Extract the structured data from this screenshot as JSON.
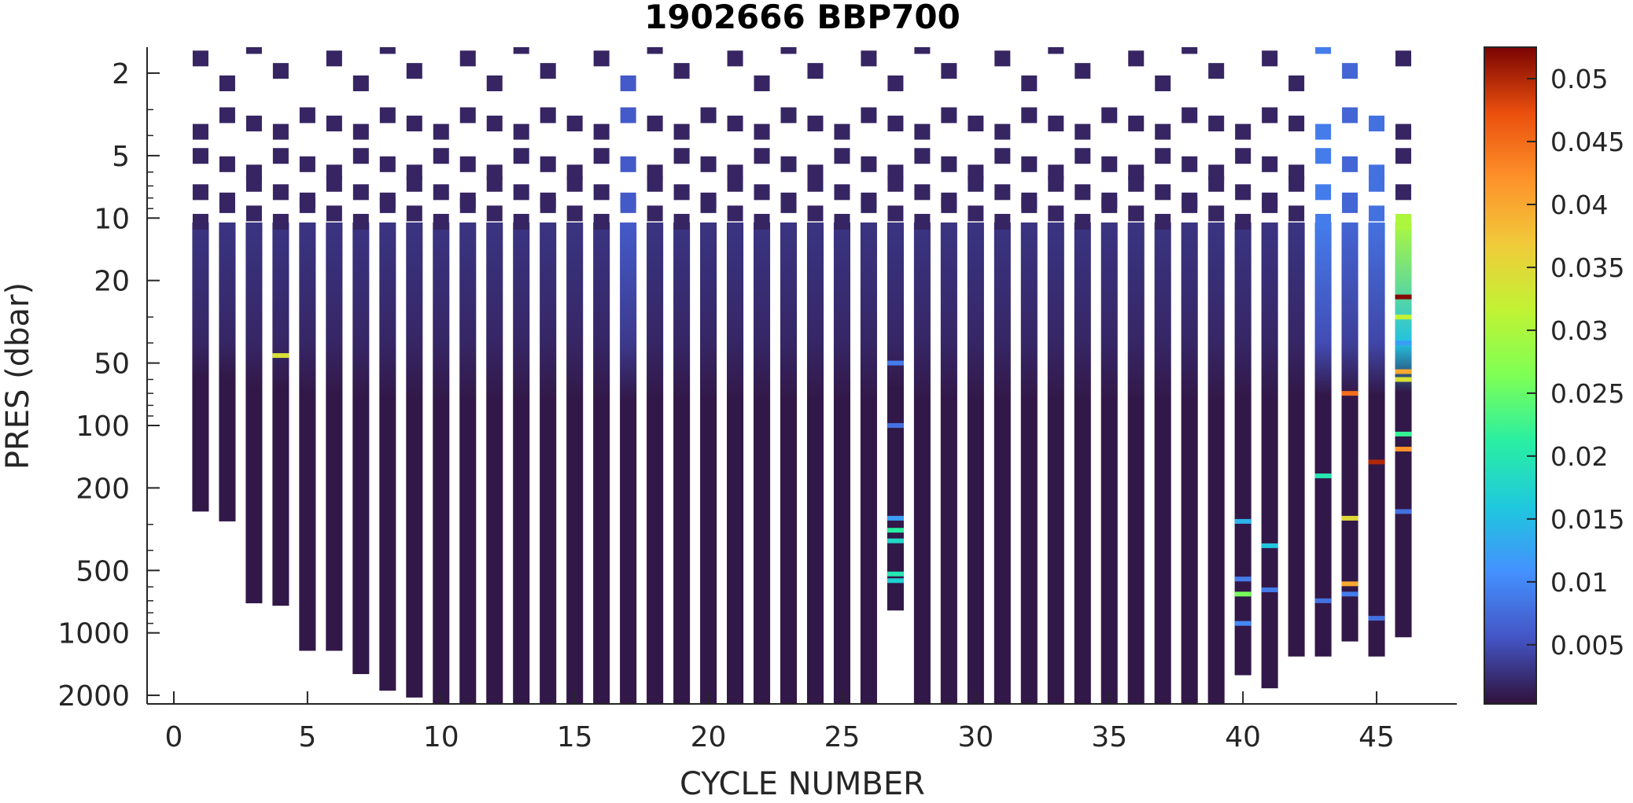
{
  "chart_data": {
    "type": "heatmap",
    "title": "1902666 BBP700",
    "xlabel": "CYCLE NUMBER",
    "ylabel": "PRES (dbar)",
    "xlim": [
      -1,
      48
    ],
    "ylim": [
      1.5,
      2200
    ],
    "yscale": "log",
    "y_reversed": true,
    "xticks": [
      0,
      5,
      10,
      15,
      20,
      25,
      30,
      35,
      40,
      45
    ],
    "xtick_labels": [
      "0",
      "5",
      "10",
      "15",
      "20",
      "25",
      "30",
      "35",
      "40",
      "45"
    ],
    "yticks": [
      2,
      5,
      10,
      20,
      50,
      100,
      200,
      500,
      1000,
      2000
    ],
    "ytick_labels": [
      "2",
      "5",
      "10",
      "20",
      "50",
      "100",
      "200",
      "500",
      "1000",
      "2000"
    ],
    "colorbar": {
      "colormap": "turbo",
      "clim": [
        0.0003,
        0.0525
      ],
      "ticks": [
        0.005,
        0.01,
        0.015,
        0.02,
        0.025,
        0.03,
        0.035,
        0.04,
        0.045,
        0.05
      ],
      "tick_labels": [
        "0.005",
        "0.01",
        "0.015",
        "0.02",
        "0.025",
        "0.03",
        "0.035",
        "0.04",
        "0.045",
        "0.05"
      ]
    },
    "grid": false,
    "cycles": [
      1,
      2,
      3,
      4,
      5,
      6,
      7,
      8,
      9,
      10,
      11,
      12,
      13,
      14,
      15,
      16,
      17,
      18,
      19,
      20,
      21,
      22,
      23,
      24,
      25,
      26,
      27,
      28,
      29,
      30,
      31,
      32,
      33,
      34,
      35,
      36,
      37,
      38,
      39,
      40,
      41,
      42,
      43,
      44,
      45,
      46
    ],
    "profile_max_pressure_dbar": [
      260,
      290,
      720,
      740,
      1220,
      1220,
      1580,
      1900,
      2050,
      2200,
      2200,
      2200,
      2200,
      2200,
      2200,
      2200,
      2200,
      2200,
      2200,
      2200,
      2200,
      2200,
      2200,
      2200,
      2200,
      2200,
      780,
      2200,
      2200,
      2200,
      2200,
      2200,
      2200,
      2200,
      2200,
      2200,
      2200,
      2200,
      2200,
      1600,
      1850,
      1300,
      1300,
      1100,
      1300,
      1050
    ],
    "surface_samples": {
      "pressure_levels_dbar": [
        1.7,
        3.5,
        5.5,
        7.5,
        9.5
      ],
      "typical_bbp700": 0.0018
    },
    "deep_background_bbp700": 0.0008,
    "upper_layer": {
      "pressure_range_dbar": [
        10,
        40
      ],
      "bbp700": 0.003
    },
    "elevated_cycles": [
      {
        "cycle": 17,
        "pressure_range_dbar": [
          1.7,
          40
        ],
        "bbp700": 0.006
      },
      {
        "cycle": 43,
        "pressure_range_dbar": [
          1.7,
          20
        ],
        "bbp700": 0.009
      },
      {
        "cycle": 44,
        "pressure_range_dbar": [
          1.7,
          20
        ],
        "bbp700": 0.007
      },
      {
        "cycle": 45,
        "pressure_range_dbar": [
          1.7,
          20
        ],
        "bbp700": 0.008
      },
      {
        "cycle": 46,
        "pressure_range_dbar": [
          8,
          80
        ],
        "bbp700": 0.03
      }
    ],
    "spikes": [
      {
        "cycle": 4,
        "pressure_dbar": 46,
        "bbp700": 0.034
      },
      {
        "cycle": 27,
        "pressure_dbar": 50,
        "bbp700": 0.009
      },
      {
        "cycle": 27,
        "pressure_dbar": 100,
        "bbp700": 0.008
      },
      {
        "cycle": 27,
        "pressure_dbar": 280,
        "bbp700": 0.012
      },
      {
        "cycle": 27,
        "pressure_dbar": 320,
        "bbp700": 0.021
      },
      {
        "cycle": 27,
        "pressure_dbar": 360,
        "bbp700": 0.018
      },
      {
        "cycle": 27,
        "pressure_dbar": 520,
        "bbp700": 0.02
      },
      {
        "cycle": 27,
        "pressure_dbar": 560,
        "bbp700": 0.017
      },
      {
        "cycle": 40,
        "pressure_dbar": 290,
        "bbp700": 0.014
      },
      {
        "cycle": 40,
        "pressure_dbar": 550,
        "bbp700": 0.009
      },
      {
        "cycle": 40,
        "pressure_dbar": 650,
        "bbp700": 0.026
      },
      {
        "cycle": 40,
        "pressure_dbar": 900,
        "bbp700": 0.01
      },
      {
        "cycle": 41,
        "pressure_dbar": 380,
        "bbp700": 0.016
      },
      {
        "cycle": 41,
        "pressure_dbar": 620,
        "bbp700": 0.009
      },
      {
        "cycle": 43,
        "pressure_dbar": 175,
        "bbp700": 0.02
      },
      {
        "cycle": 43,
        "pressure_dbar": 700,
        "bbp700": 0.008
      },
      {
        "cycle": 44,
        "pressure_dbar": 70,
        "bbp700": 0.045
      },
      {
        "cycle": 44,
        "pressure_dbar": 280,
        "bbp700": 0.035
      },
      {
        "cycle": 44,
        "pressure_dbar": 580,
        "bbp700": 0.04
      },
      {
        "cycle": 44,
        "pressure_dbar": 650,
        "bbp700": 0.009
      },
      {
        "cycle": 45,
        "pressure_dbar": 150,
        "bbp700": 0.05
      },
      {
        "cycle": 45,
        "pressure_dbar": 850,
        "bbp700": 0.008
      },
      {
        "cycle": 46,
        "pressure_dbar": 24,
        "bbp700": 0.052
      },
      {
        "cycle": 46,
        "pressure_dbar": 30,
        "bbp700": 0.032
      },
      {
        "cycle": 46,
        "pressure_dbar": 40,
        "bbp700": 0.012
      },
      {
        "cycle": 46,
        "pressure_dbar": 55,
        "bbp700": 0.04
      },
      {
        "cycle": 46,
        "pressure_dbar": 60,
        "bbp700": 0.034
      },
      {
        "cycle": 46,
        "pressure_dbar": 110,
        "bbp700": 0.022
      },
      {
        "cycle": 46,
        "pressure_dbar": 130,
        "bbp700": 0.042
      },
      {
        "cycle": 46,
        "pressure_dbar": 260,
        "bbp700": 0.008
      }
    ]
  }
}
